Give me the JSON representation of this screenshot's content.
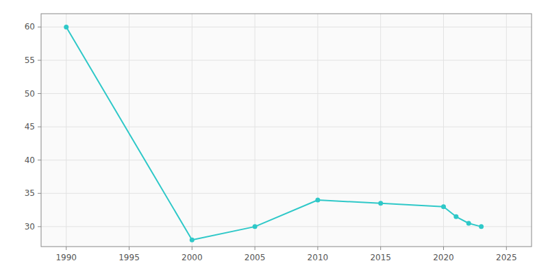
{
  "chart_data": {
    "type": "line",
    "x": [
      1990,
      2000,
      2005,
      2010,
      2015,
      2020,
      2021,
      2022,
      2023
    ],
    "values": [
      60,
      28,
      30,
      34,
      33.5,
      33,
      31.5,
      30.5,
      30
    ],
    "color": "#2ec8c8",
    "marker": "circle",
    "xlim": [
      1988,
      2027
    ],
    "ylim": [
      27,
      62
    ],
    "xticks": [
      1990,
      1995,
      2000,
      2005,
      2010,
      2015,
      2020,
      2025
    ],
    "yticks": [
      30,
      35,
      40,
      45,
      50,
      55,
      60
    ],
    "grid": true
  }
}
